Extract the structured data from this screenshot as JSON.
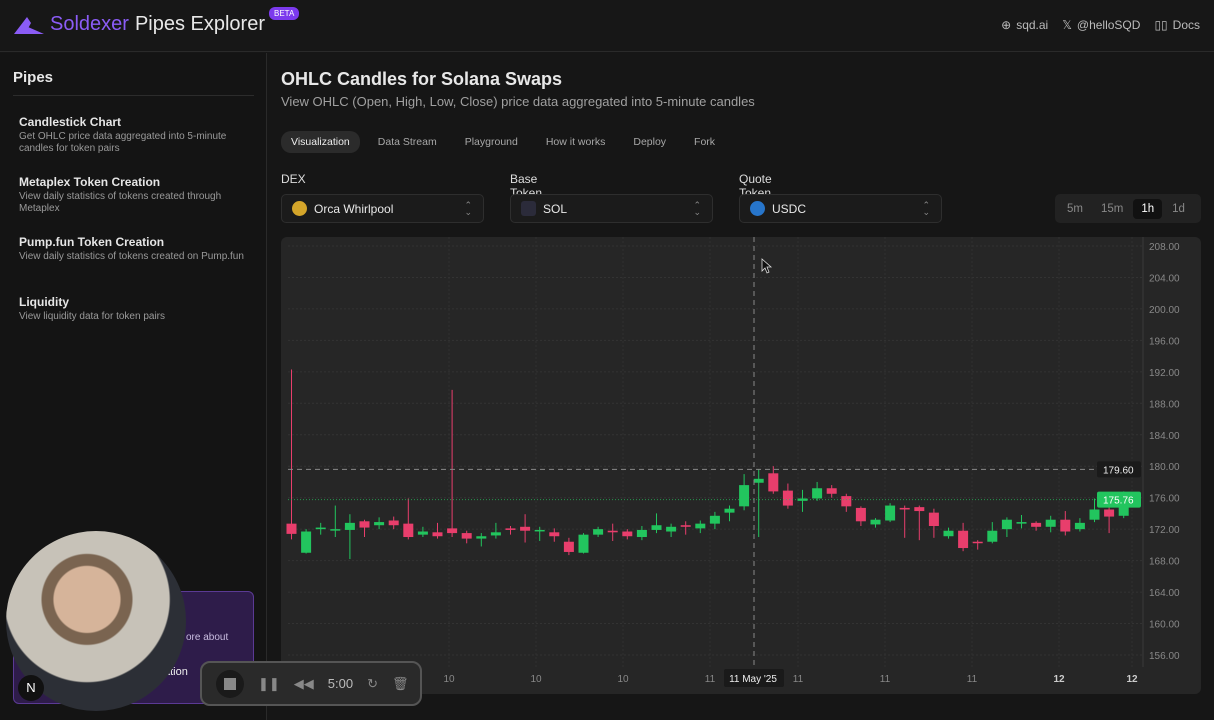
{
  "header": {
    "brand": "Soldexer",
    "product": "Pipes Explorer",
    "badge": "BETA",
    "links": [
      {
        "icon": "globe-icon",
        "label": "sqd.ai"
      },
      {
        "icon": "x-logo-icon",
        "label": "@helloSQD"
      },
      {
        "icon": "book-icon",
        "label": "Docs"
      }
    ]
  },
  "sidebar": {
    "title": "Pipes",
    "items": [
      {
        "title": "Candlestick Chart",
        "desc": "Get OHLC price data aggregated into 5-minute candles for token pairs"
      },
      {
        "title": "Metaplex Token Creation",
        "desc": "View daily statistics of tokens created through Metaplex"
      },
      {
        "title": "Pump.fun Token Creation",
        "desc": "View daily statistics of tokens created on Pump.fun"
      },
      {
        "title": "Liquidity",
        "desc": "View liquidity data for token pairs"
      }
    ],
    "promo": {
      "text_fragment": "ore about",
      "button_fragment": "ation"
    }
  },
  "overlay": {
    "badge": "N",
    "recorder_time": "5:00"
  },
  "main": {
    "title": "OHLC Candles for Solana Swaps",
    "subtitle": "View OHLC (Open, High, Low, Close) price data aggregated into 5-minute candles",
    "tabs": [
      "Visualization",
      "Data Stream",
      "Playground",
      "How it works",
      "Deploy",
      "Fork"
    ],
    "active_tab": "Visualization",
    "dex": {
      "label": "DEX",
      "value": "Orca Whirlpool"
    },
    "base": {
      "label": "Base Token",
      "value": "SOL"
    },
    "quote": {
      "label": "Quote Token",
      "value": "USDC"
    },
    "timeframes": [
      "5m",
      "15m",
      "1h",
      "1d"
    ],
    "active_timeframe": "1h"
  },
  "colors": {
    "up": "#22c55e",
    "down": "#e83e6c",
    "accent": "#8b5cf6"
  },
  "chart_data": {
    "type": "candlestick",
    "ylim": [
      156,
      208
    ],
    "y_ticks": [
      "208.00",
      "204.00",
      "200.00",
      "196.00",
      "192.00",
      "188.00",
      "184.00",
      "180.00",
      "176.00",
      "172.00",
      "168.00",
      "164.00",
      "160.00",
      "156.00"
    ],
    "x_ticks": [
      "10",
      "10",
      "10",
      "11",
      "11",
      "11",
      "11",
      "12",
      "12"
    ],
    "crosshair": {
      "x_label": "11 May '25",
      "y_label": "179.60",
      "y": 179.6
    },
    "last_price": {
      "label": "175.76",
      "value": 175.76
    },
    "candles": [
      [
        172.7,
        192.3,
        170.7,
        171.4
      ],
      [
        169.0,
        172.0,
        168.9,
        171.7
      ],
      [
        172.0,
        172.8,
        171.3,
        172.2
      ],
      [
        171.9,
        175.0,
        171.0,
        172.0
      ],
      [
        171.9,
        173.9,
        168.2,
        172.8
      ],
      [
        173.0,
        173.2,
        171.0,
        172.2
      ],
      [
        172.5,
        173.5,
        172.0,
        172.9
      ],
      [
        173.1,
        173.6,
        172.0,
        172.5
      ],
      [
        172.7,
        175.9,
        170.7,
        171.0
      ],
      [
        171.3,
        172.3,
        171.0,
        171.7
      ],
      [
        171.6,
        172.8,
        170.8,
        171.1
      ],
      [
        172.1,
        189.7,
        171.0,
        171.5
      ],
      [
        171.5,
        171.8,
        170.2,
        170.8
      ],
      [
        170.8,
        171.5,
        169.8,
        171.1
      ],
      [
        171.2,
        172.8,
        170.8,
        171.6
      ],
      [
        172.1,
        172.4,
        171.3,
        171.9
      ],
      [
        172.3,
        173.9,
        170.3,
        171.8
      ],
      [
        171.8,
        172.3,
        170.5,
        171.9
      ],
      [
        171.6,
        172.1,
        170.4,
        171.1
      ],
      [
        170.4,
        170.9,
        168.7,
        169.1
      ],
      [
        169.0,
        171.5,
        168.9,
        171.3
      ],
      [
        171.3,
        172.3,
        171.0,
        172.0
      ],
      [
        171.8,
        172.7,
        170.5,
        171.6
      ],
      [
        171.7,
        172.0,
        170.7,
        171.1
      ],
      [
        171.0,
        172.4,
        170.6,
        171.9
      ],
      [
        171.9,
        174.0,
        171.5,
        172.5
      ],
      [
        171.7,
        172.7,
        171.0,
        172.3
      ],
      [
        172.5,
        173.0,
        171.3,
        172.3
      ],
      [
        172.1,
        173.1,
        171.5,
        172.7
      ],
      [
        172.7,
        174.2,
        172.0,
        173.7
      ],
      [
        174.1,
        175.0,
        173.0,
        174.6
      ],
      [
        174.9,
        179.0,
        174.4,
        177.6
      ],
      [
        177.9,
        179.6,
        171.0,
        178.4
      ],
      [
        179.1,
        180.0,
        176.5,
        176.8
      ],
      [
        176.9,
        177.8,
        174.6,
        175.0
      ],
      [
        175.6,
        177.0,
        174.2,
        175.9
      ],
      [
        175.9,
        178.0,
        175.6,
        177.2
      ],
      [
        177.2,
        177.6,
        176.0,
        176.5
      ],
      [
        176.2,
        176.5,
        174.2,
        174.9
      ],
      [
        174.7,
        174.9,
        172.4,
        173.0
      ],
      [
        172.6,
        173.4,
        172.2,
        173.2
      ],
      [
        173.1,
        175.3,
        172.9,
        175.0
      ],
      [
        174.7,
        175.0,
        170.9,
        174.5
      ],
      [
        174.8,
        175.0,
        170.6,
        174.3
      ],
      [
        174.1,
        174.6,
        170.9,
        172.4
      ],
      [
        171.1,
        172.2,
        170.8,
        171.8
      ],
      [
        171.8,
        172.8,
        169.2,
        169.6
      ],
      [
        170.4,
        170.6,
        169.4,
        170.3
      ],
      [
        170.4,
        172.9,
        170.2,
        171.8
      ],
      [
        172.0,
        173.5,
        171.0,
        173.2
      ],
      [
        172.7,
        173.8,
        172.1,
        172.9
      ],
      [
        172.8,
        173.0,
        171.8,
        172.3
      ],
      [
        172.3,
        173.7,
        171.6,
        173.2
      ],
      [
        173.2,
        174.3,
        171.2,
        171.7
      ],
      [
        172.0,
        173.4,
        171.7,
        172.8
      ],
      [
        173.2,
        175.9,
        172.9,
        174.5
      ],
      [
        174.5,
        175.9,
        171.5,
        173.6
      ],
      [
        173.7,
        176.8,
        173.4,
        175.8
      ]
    ]
  }
}
